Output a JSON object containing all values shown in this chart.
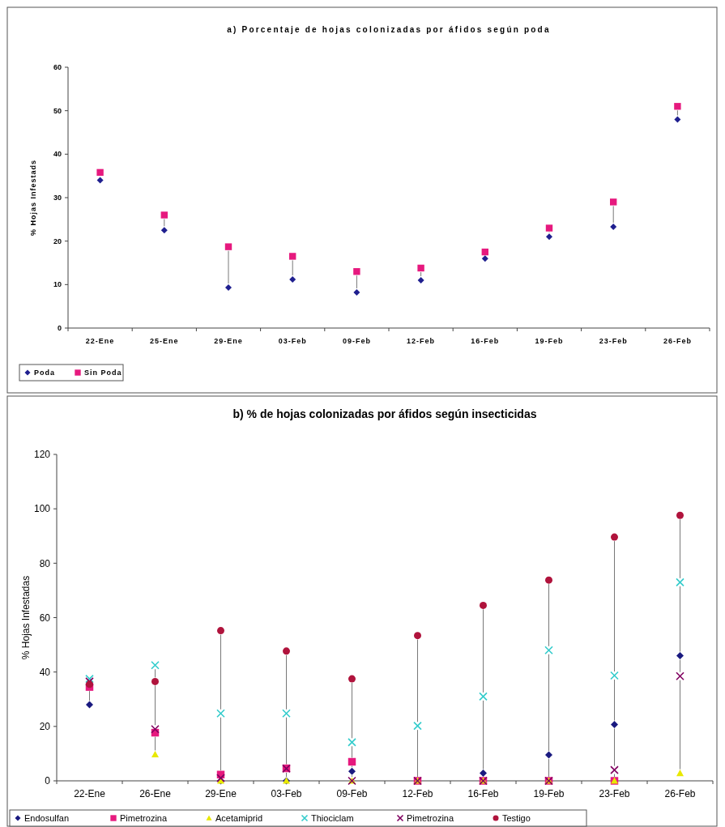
{
  "chart_data": [
    {
      "type": "scatter",
      "title": "a) Porcentaje de hojas colonizadas por áfidos según poda",
      "ylabel": "% Hojas Infestads",
      "categories": [
        "22-Ene",
        "25-Ene",
        "29-Ene",
        "03-Feb",
        "09-Feb",
        "12-Feb",
        "16-Feb",
        "19-Feb",
        "23-Feb",
        "26-Feb"
      ],
      "series": [
        {
          "name": "Poda",
          "color": "#1f1f8f",
          "marker": "diamond",
          "values": [
            34,
            22.5,
            9.3,
            11.2,
            8.2,
            11,
            16,
            21,
            23.3,
            48
          ]
        },
        {
          "name": "Sin Poda",
          "color": "#e6197e",
          "marker": "square",
          "values": [
            35.8,
            26,
            18.7,
            16.5,
            13,
            13.8,
            17.5,
            23,
            29,
            51
          ]
        }
      ],
      "ylim": [
        0,
        60
      ],
      "yticks": [
        0,
        10,
        20,
        30,
        40,
        50,
        60
      ],
      "legend": "bottom left",
      "grid": false
    },
    {
      "type": "scatter",
      "title": "b) % de hojas colonizadas por áfidos según insecticidas",
      "ylabel": "% Hojas Infestadas",
      "categories": [
        "22-Ene",
        "26-Ene",
        "29-Ene",
        "03-Feb",
        "09-Feb",
        "12-Feb",
        "16-Feb",
        "19-Feb",
        "23-Feb",
        "26-Feb"
      ],
      "series": [
        {
          "name": "Endosulfan",
          "color": "#1a1a80",
          "marker": "diamond",
          "values": [
            28,
            null,
            0,
            0,
            3.5,
            null,
            2.8,
            9.5,
            20.7,
            46
          ]
        },
        {
          "name": "Pimetrozina",
          "color": "#e6197e",
          "marker": "square",
          "values": [
            34.5,
            17.7,
            2.3,
            4.6,
            7,
            0,
            0,
            0,
            0,
            null
          ]
        },
        {
          "name": "Acetamiprid",
          "color": "#e8e800",
          "marker": "triangle",
          "values": [
            null,
            9.7,
            0,
            0,
            0,
            0,
            0,
            0,
            0,
            2.8
          ]
        },
        {
          "name": "Thiociclam",
          "color": "#33cccc",
          "marker": "cross",
          "values": [
            37.5,
            42.5,
            24.8,
            24.8,
            14.2,
            20.2,
            31,
            48,
            38.7,
            73
          ]
        },
        {
          "name": "Pimetrozina",
          "color": "#800060",
          "marker": "cross",
          "values": [
            36.5,
            19,
            1,
            4.5,
            0,
            0,
            0,
            0,
            4,
            38.5
          ]
        },
        {
          "name": "Testigo",
          "color": "#b0133c",
          "marker": "circle",
          "values": [
            35.5,
            36.5,
            55.2,
            47.7,
            37.5,
            53.4,
            64.5,
            73.8,
            89.6,
            97.6
          ]
        }
      ],
      "ylim": [
        0,
        120
      ],
      "yticks": [
        0,
        20,
        40,
        60,
        80,
        100,
        120
      ],
      "legend": "bottom",
      "grid": false
    }
  ]
}
